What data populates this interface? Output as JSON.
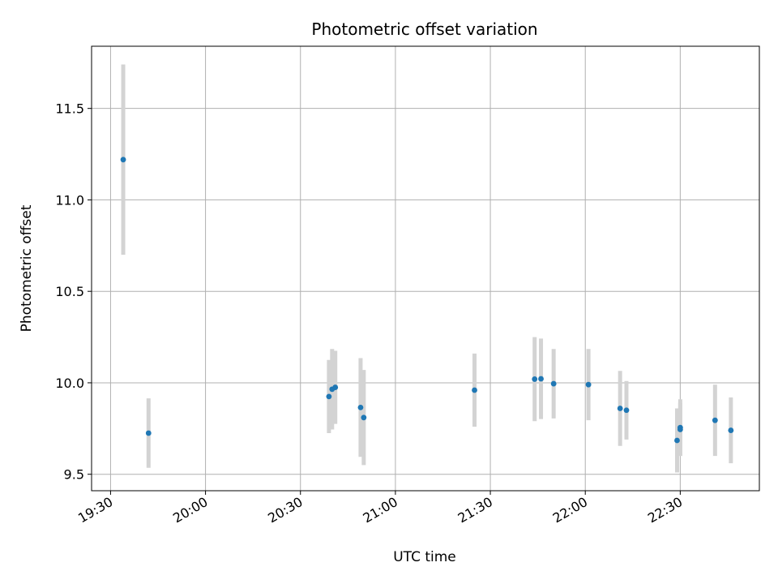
{
  "chart_data": {
    "type": "scatter",
    "title": "Photometric offset variation",
    "xlabel": "UTC time",
    "ylabel": "Photometric offset",
    "x_axis": "time",
    "xlim": [
      "19:24",
      "22:55"
    ],
    "ylim": [
      9.41,
      11.84
    ],
    "x_ticks": [
      "19:30",
      "20:00",
      "20:30",
      "21:00",
      "21:30",
      "22:00",
      "22:30"
    ],
    "y_ticks": [
      "9.5",
      "10.0",
      "10.5",
      "11.0",
      "11.5"
    ],
    "y_tick_values": [
      9.5,
      10.0,
      10.5,
      11.0,
      11.5
    ],
    "grid": true,
    "point_color": "#1f77b4",
    "errorbar_color": "#d3d3d3",
    "points": [
      {
        "x": "19:34",
        "y": 11.22,
        "err": 0.52
      },
      {
        "x": "19:42",
        "y": 9.725,
        "err": 0.19
      },
      {
        "x": "20:39",
        "y": 9.925,
        "err": 0.2
      },
      {
        "x": "20:40",
        "y": 9.965,
        "err": 0.22
      },
      {
        "x": "20:41",
        "y": 9.975,
        "err": 0.2
      },
      {
        "x": "20:49",
        "y": 9.865,
        "err": 0.27
      },
      {
        "x": "20:50",
        "y": 9.81,
        "err": 0.26
      },
      {
        "x": "21:25",
        "y": 9.96,
        "err": 0.2
      },
      {
        "x": "21:44",
        "y": 10.02,
        "err": 0.23
      },
      {
        "x": "21:46",
        "y": 10.022,
        "err": 0.22
      },
      {
        "x": "21:50",
        "y": 9.995,
        "err": 0.19
      },
      {
        "x": "22:01",
        "y": 9.99,
        "err": 0.195
      },
      {
        "x": "22:11",
        "y": 9.86,
        "err": 0.205
      },
      {
        "x": "22:13",
        "y": 9.85,
        "err": 0.16
      },
      {
        "x": "22:29",
        "y": 9.685,
        "err": 0.175
      },
      {
        "x": "22:30",
        "y": 9.755,
        "err": 0.155
      },
      {
        "x": "22:30",
        "y": 9.745,
        "err": 0.145
      },
      {
        "x": "22:41",
        "y": 9.795,
        "err": 0.195
      },
      {
        "x": "22:46",
        "y": 9.74,
        "err": 0.18
      }
    ]
  }
}
